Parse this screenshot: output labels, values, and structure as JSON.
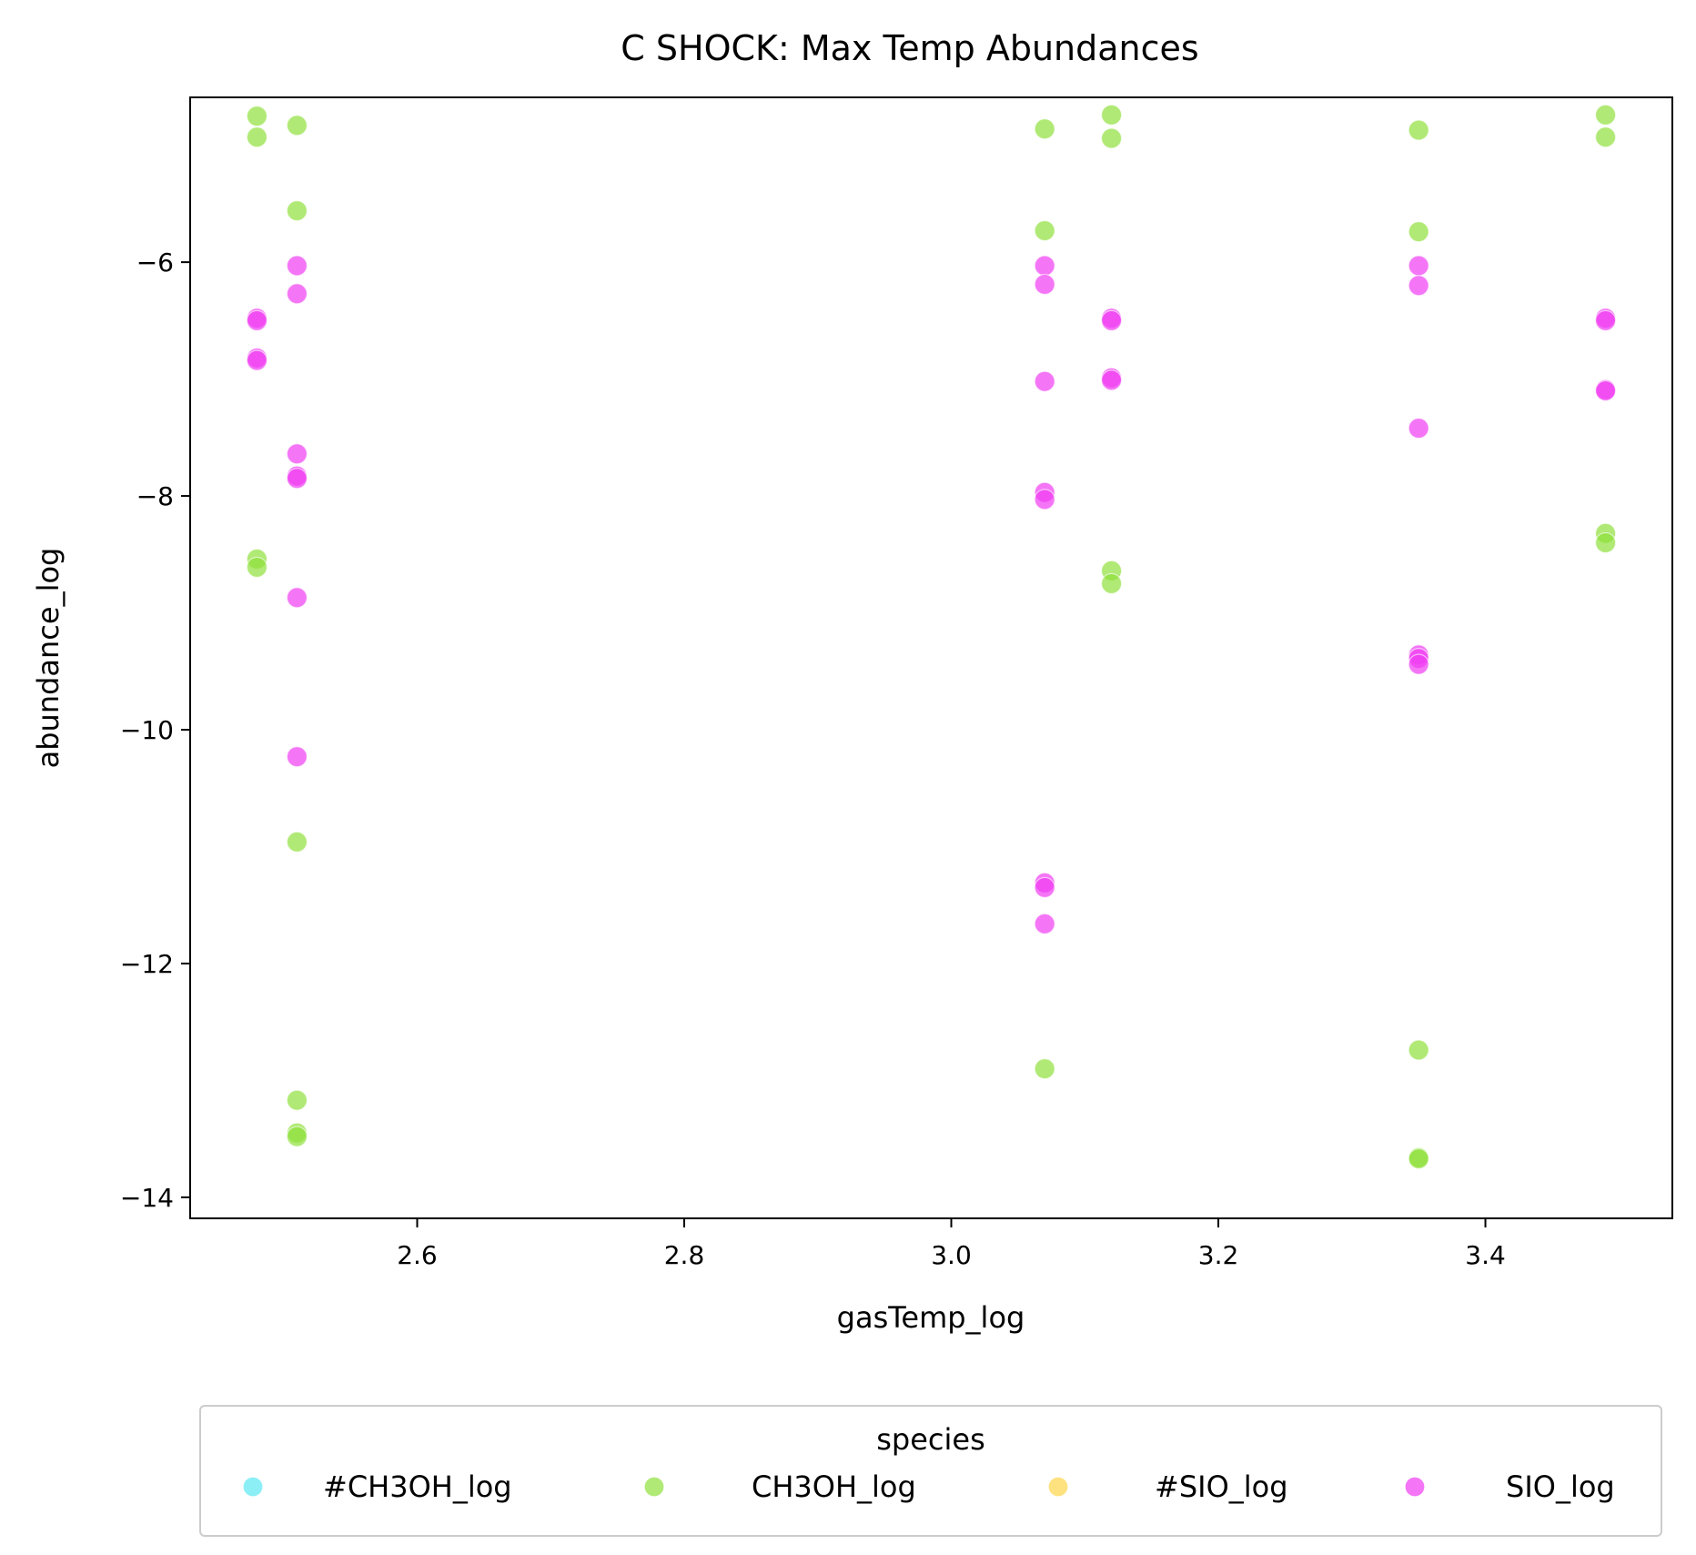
{
  "chart_data": {
    "type": "scatter",
    "title": "C SHOCK: Max Temp Abundances",
    "xlabel": "gasTemp_log",
    "ylabel": "abundance_log",
    "xlim": [
      2.43,
      3.54
    ],
    "ylim": [
      -14.18,
      -4.59
    ],
    "x_ticks": [
      2.6,
      2.8,
      3.0,
      3.2,
      3.4
    ],
    "x_tick_labels": [
      "2.6",
      "2.8",
      "3.0",
      "3.2",
      "3.4"
    ],
    "y_ticks": [
      -6,
      -8,
      -10,
      -12,
      -14
    ],
    "y_tick_labels": [
      "−6",
      "−8",
      "−10",
      "−12",
      "−14"
    ],
    "grid": false,
    "legend": {
      "title": "species",
      "placement": "below plot, 4 columns",
      "entries": [
        "#CH3OH_log",
        "CH3OH_log",
        "#SIO_log",
        "SIO_log"
      ]
    },
    "series": [
      {
        "name": "#CH3OH_log",
        "color": "#5ce8f2",
        "points": []
      },
      {
        "name": "CH3OH_log",
        "color": "#8ee03a",
        "points": [
          [
            2.48,
            -4.75
          ],
          [
            2.48,
            -4.93
          ],
          [
            2.48,
            -8.54
          ],
          [
            2.48,
            -8.61
          ],
          [
            2.51,
            -4.83
          ],
          [
            2.51,
            -5.56
          ],
          [
            2.51,
            -10.96
          ],
          [
            2.51,
            -13.17
          ],
          [
            2.51,
            -13.45
          ],
          [
            2.51,
            -13.48
          ],
          [
            3.07,
            -4.86
          ],
          [
            3.07,
            -5.73
          ],
          [
            3.07,
            -12.9
          ],
          [
            3.12,
            -4.74
          ],
          [
            3.12,
            -4.94
          ],
          [
            3.12,
            -8.64
          ],
          [
            3.12,
            -8.75
          ],
          [
            3.35,
            -4.87
          ],
          [
            3.35,
            -5.74
          ],
          [
            3.35,
            -12.74
          ],
          [
            3.35,
            -13.66
          ],
          [
            3.35,
            -13.67
          ],
          [
            3.49,
            -4.74
          ],
          [
            3.49,
            -4.93
          ],
          [
            3.49,
            -8.32
          ],
          [
            3.49,
            -8.4
          ]
        ]
      },
      {
        "name": "#SIO_log",
        "color": "#ffd54a",
        "points": []
      },
      {
        "name": "SIO_log",
        "color": "#f03cf2",
        "points": [
          [
            2.48,
            -6.48
          ],
          [
            2.48,
            -6.5
          ],
          [
            2.48,
            -6.82
          ],
          [
            2.48,
            -6.84
          ],
          [
            2.51,
            -6.03
          ],
          [
            2.51,
            -6.27
          ],
          [
            2.51,
            -7.64
          ],
          [
            2.51,
            -7.83
          ],
          [
            2.51,
            -7.85
          ],
          [
            2.51,
            -8.87
          ],
          [
            2.51,
            -10.23
          ],
          [
            3.07,
            -6.03
          ],
          [
            3.07,
            -6.19
          ],
          [
            3.07,
            -7.02
          ],
          [
            3.07,
            -7.97
          ],
          [
            3.07,
            -8.03
          ],
          [
            3.07,
            -11.31
          ],
          [
            3.07,
            -11.35
          ],
          [
            3.07,
            -11.66
          ],
          [
            3.12,
            -6.48
          ],
          [
            3.12,
            -6.5
          ],
          [
            3.12,
            -6.99
          ],
          [
            3.12,
            -7.01
          ],
          [
            3.35,
            -6.03
          ],
          [
            3.35,
            -6.2
          ],
          [
            3.35,
            -7.42
          ],
          [
            3.35,
            -9.36
          ],
          [
            3.35,
            -9.39
          ],
          [
            3.35,
            -9.44
          ],
          [
            3.49,
            -6.48
          ],
          [
            3.49,
            -6.5
          ],
          [
            3.49,
            -7.09
          ],
          [
            3.49,
            -7.1
          ]
        ]
      }
    ]
  }
}
